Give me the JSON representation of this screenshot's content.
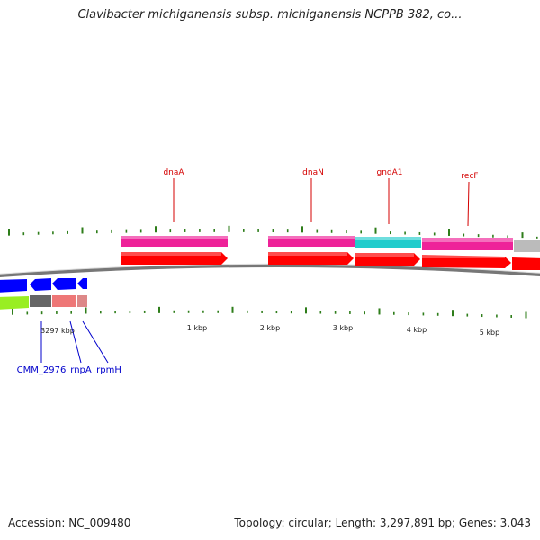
{
  "title": "Clavibacter michiganensis subsp. michiganensis NCPPB 382, co...",
  "accession": "Accession: NC_009480",
  "summary": "Topology: circular; Length: 3,297,891 bp; Genes: 3,043",
  "colors": {
    "backbone": "#777777",
    "tick": "#2e7d1a",
    "cds_forward": "#ff0000",
    "cds_reverse": "#0000ff",
    "rna_green": "#99ee22",
    "rna_grey": "#666666",
    "rna_salmon": "#ee7777",
    "cog_magenta": "#ee2299",
    "cog_cyan": "#22cccc",
    "cog_grey": "#bbbbbb",
    "label_top": "#d40000",
    "label_bottom": "#0000cc"
  },
  "scale_labels": [
    "3297 kbp",
    "1 kbp",
    "2 kbp",
    "3 kbp",
    "4 kbp",
    "5 kbp"
  ],
  "top_gene_labels": [
    "dnaA",
    "dnaN",
    "gndA1",
    "recF"
  ],
  "bottom_gene_labels": [
    "CMM_2976",
    "rnpA",
    "rpmH"
  ]
}
